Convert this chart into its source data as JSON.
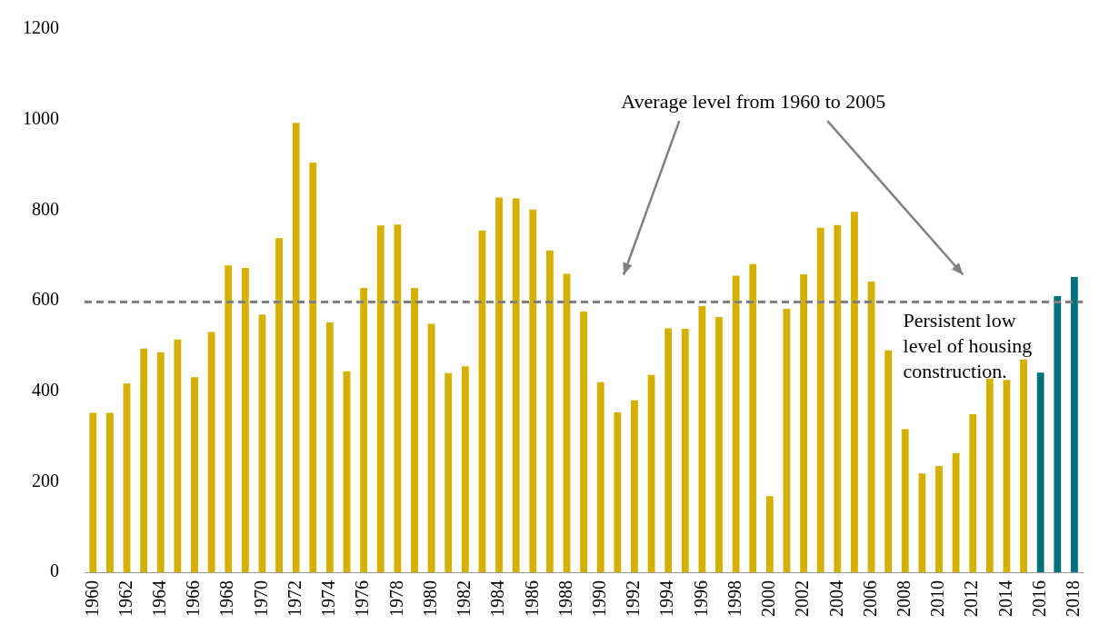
{
  "chart_data": {
    "type": "bar",
    "categories": [
      "1960",
      null,
      "1962",
      null,
      "1964",
      null,
      "1966",
      null,
      "1968",
      null,
      "1970",
      null,
      "1972",
      null,
      "1974",
      null,
      "1976",
      null,
      "1978",
      null,
      "1980",
      null,
      "1982",
      null,
      "1984",
      null,
      "1986",
      null,
      "1988",
      null,
      "1990",
      null,
      "1992",
      null,
      "1994",
      null,
      "1996",
      null,
      "1998",
      null,
      "2000",
      null,
      "2002",
      null,
      "2004",
      null,
      "2006",
      null,
      "2008",
      null,
      "2010",
      null,
      "2012",
      null,
      "2014",
      null,
      "2016",
      null,
      "2018"
    ],
    "values": [
      352,
      352,
      417,
      494,
      486,
      514,
      431,
      531,
      678,
      672,
      569,
      738,
      993,
      905,
      552,
      444,
      628,
      766,
      768,
      628,
      549,
      440,
      455,
      755,
      828,
      826,
      801,
      711,
      659,
      576,
      420,
      353,
      380,
      436,
      539,
      538,
      588,
      564,
      655,
      681,
      168,
      582,
      658,
      761,
      767,
      796,
      642,
      490,
      316,
      218,
      235,
      263,
      349,
      428,
      425,
      470,
      441,
      610,
      652
    ],
    "colors": [
      "#d4b000",
      "#d4b000",
      "#d4b000",
      "#d4b000",
      "#d4b000",
      "#d4b000",
      "#d4b000",
      "#d4b000",
      "#d4b000",
      "#d4b000",
      "#d4b000",
      "#d4b000",
      "#d4b000",
      "#d4b000",
      "#d4b000",
      "#d4b000",
      "#d4b000",
      "#d4b000",
      "#d4b000",
      "#d4b000",
      "#d4b000",
      "#d4b000",
      "#d4b000",
      "#d4b000",
      "#d4b000",
      "#d4b000",
      "#d4b000",
      "#d4b000",
      "#d4b000",
      "#d4b000",
      "#d4b000",
      "#d4b000",
      "#d4b000",
      "#d4b000",
      "#d4b000",
      "#d4b000",
      "#d4b000",
      "#d4b000",
      "#d4b000",
      "#d4b000",
      "#d4b000",
      "#d4b000",
      "#d4b000",
      "#d4b000",
      "#d4b000",
      "#d4b000",
      "#d4b000",
      "#d4b000",
      "#d4b000",
      "#d4b000",
      "#d4b000",
      "#d4b000",
      "#d4b000",
      "#d4b000",
      "#d4b000",
      "#d4b000",
      "#00707a",
      "#00707a",
      "#00707a"
    ],
    "ylim": [
      0,
      1200
    ],
    "yticks": [
      0,
      200,
      400,
      600,
      800,
      1000,
      1200
    ],
    "grid": false,
    "legend": false,
    "ref_lines": [
      {
        "axis": "y",
        "value": 597,
        "color": "#808080",
        "line_style": "dashed"
      }
    ],
    "annotations": [
      "Average level from 1960 to 2005",
      "Persistent low level of housing construction."
    ]
  }
}
